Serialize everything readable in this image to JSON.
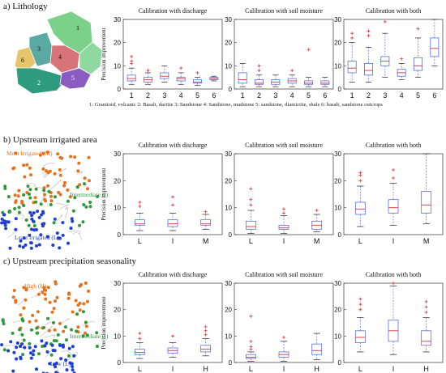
{
  "sections": [
    {
      "label": "a) Lithology"
    },
    {
      "label": "b) Upstream irrigated area"
    },
    {
      "label": "c) Upstream precipitation seasonality"
    }
  ],
  "lithology_caption": "1: Granitoid, volcanic   2: Basalt, dactite   3: Sandstone   4: Sandstone, mudstone   5: sandstone, diamictite, shale   6: basalt, sandstone outcrops",
  "maps": {
    "lithology_numbers": [
      "1",
      "2",
      "3",
      "4",
      "5",
      "6"
    ],
    "irrigated_labels": {
      "high": "Most Irrigated (M)",
      "mid": "Intermediate (I)",
      "low": "Least irrigated (L)"
    },
    "seasonality_labels": {
      "high": "High (H)",
      "mid": "Intermediate (I)",
      "low": "Low (L)"
    },
    "colors": {
      "high": "#e8701a",
      "mid": "#2e9a3a",
      "low": "#1f3fd0"
    }
  },
  "colors": {
    "box": "#5a6ee0",
    "median": "#e0303a",
    "outlier": "#e0303a",
    "axis": "#333333"
  },
  "chart_data": [
    {
      "id": "a1",
      "type": "box",
      "title": "Calibration with discharge",
      "ylabel": "Precision improvement",
      "ylim": [
        0,
        30
      ],
      "yticks": [
        0,
        10,
        20,
        30
      ],
      "categories": [
        "1",
        "2",
        "3",
        "4",
        "5",
        "6"
      ],
      "boxes": [
        {
          "wlo": 2,
          "q1": 3.5,
          "med": 4.5,
          "q3": 6,
          "whi": 9,
          "out": [
            11,
            12,
            14
          ]
        },
        {
          "wlo": 2,
          "q1": 3,
          "med": 4,
          "q3": 5,
          "whi": 7,
          "out": [
            8
          ]
        },
        {
          "wlo": 3,
          "q1": 4.5,
          "med": 5.5,
          "q3": 7,
          "whi": 10,
          "out": []
        },
        {
          "wlo": 2,
          "q1": 3.5,
          "med": 4.5,
          "q3": 5,
          "whi": 7,
          "out": [
            9
          ]
        },
        {
          "wlo": 1.5,
          "q1": 2.5,
          "med": 3,
          "q3": 4,
          "whi": 5,
          "out": [
            7
          ]
        },
        {
          "wlo": 3.5,
          "q1": 4,
          "med": 4.5,
          "q3": 5,
          "whi": 5.5,
          "out": []
        }
      ]
    },
    {
      "id": "a2",
      "type": "box",
      "title": "Calibration with soil moisture",
      "ylabel": "",
      "ylim": [
        0,
        30
      ],
      "yticks": [
        0,
        10,
        20,
        30
      ],
      "categories": [
        "1",
        "2",
        "3",
        "4",
        "5",
        "6"
      ],
      "boxes": [
        {
          "wlo": 1,
          "q1": 2.5,
          "med": 4,
          "q3": 7,
          "whi": 11,
          "out": []
        },
        {
          "wlo": 1,
          "q1": 2,
          "med": 2.5,
          "q3": 4,
          "whi": 6,
          "out": [
            8,
            10
          ]
        },
        {
          "wlo": 1,
          "q1": 2,
          "med": 3,
          "q3": 4,
          "whi": 6,
          "out": []
        },
        {
          "wlo": 1,
          "q1": 2.5,
          "med": 3.5,
          "q3": 4.5,
          "whi": 6,
          "out": [
            8
          ]
        },
        {
          "wlo": 1,
          "q1": 2,
          "med": 2.5,
          "q3": 3.5,
          "whi": 5,
          "out": [
            17
          ]
        },
        {
          "wlo": 1,
          "q1": 2,
          "med": 2.5,
          "q3": 3.5,
          "whi": 5,
          "out": []
        }
      ]
    },
    {
      "id": "a3",
      "type": "box",
      "title": "Calibration with both",
      "ylabel": "",
      "ylim": [
        0,
        30
      ],
      "yticks": [
        0,
        10,
        20,
        30
      ],
      "categories": [
        "1",
        "2",
        "3",
        "4",
        "5",
        "6"
      ],
      "boxes": [
        {
          "wlo": 3,
          "q1": 7,
          "med": 9,
          "q3": 12,
          "whi": 20,
          "out": [
            22,
            24
          ]
        },
        {
          "wlo": 3,
          "q1": 6,
          "med": 8,
          "q3": 11,
          "whi": 18,
          "out": [
            23,
            25
          ]
        },
        {
          "wlo": 5,
          "q1": 10,
          "med": 12,
          "q3": 14,
          "whi": 24,
          "out": [
            29
          ]
        },
        {
          "wlo": 4,
          "q1": 5.5,
          "med": 7,
          "q3": 8.5,
          "whi": 11,
          "out": [
            13
          ]
        },
        {
          "wlo": 5,
          "q1": 8,
          "med": 10,
          "q3": 13.5,
          "whi": 22,
          "out": [
            26
          ]
        },
        {
          "wlo": 10,
          "q1": 14,
          "med": 17.5,
          "q3": 22,
          "whi": 30,
          "out": []
        }
      ]
    },
    {
      "id": "b1",
      "type": "box",
      "title": "Calibration with discharge",
      "ylabel": "Precision improvement",
      "ylim": [
        0,
        30
      ],
      "yticks": [
        0,
        10,
        20,
        30
      ],
      "categories": [
        "L",
        "I",
        "M"
      ],
      "boxes": [
        {
          "wlo": 1.5,
          "q1": 3.5,
          "med": 4,
          "q3": 5.5,
          "whi": 8,
          "out": [
            10.5,
            12
          ]
        },
        {
          "wlo": 1.5,
          "q1": 3,
          "med": 4,
          "q3": 5.5,
          "whi": 8,
          "out": [
            11,
            14
          ]
        },
        {
          "wlo": 2,
          "q1": 3.5,
          "med": 4,
          "q3": 5.5,
          "whi": 7.5,
          "out": [
            8.5
          ]
        }
      ]
    },
    {
      "id": "b2",
      "type": "box",
      "title": "Calibration with soil moisture",
      "ylabel": "",
      "ylim": [
        0,
        30
      ],
      "yticks": [
        0,
        10,
        20,
        30
      ],
      "categories": [
        "L",
        "I",
        "M"
      ],
      "boxes": [
        {
          "wlo": 0.5,
          "q1": 2,
          "med": 3,
          "q3": 5,
          "whi": 9,
          "out": [
            11,
            13,
            17
          ]
        },
        {
          "wlo": 0.5,
          "q1": 2,
          "med": 2.5,
          "q3": 3.5,
          "whi": 7,
          "out": [
            8,
            9.5
          ]
        },
        {
          "wlo": 1,
          "q1": 2,
          "med": 3.5,
          "q3": 5,
          "whi": 7.5,
          "out": [
            9
          ]
        }
      ]
    },
    {
      "id": "b3",
      "type": "box",
      "title": "Calibration with both",
      "ylabel": "",
      "ylim": [
        0,
        30
      ],
      "yticks": [
        0,
        10,
        20,
        30
      ],
      "categories": [
        "L",
        "I",
        "M"
      ],
      "boxes": [
        {
          "wlo": 3,
          "q1": 7.5,
          "med": 9.5,
          "q3": 12,
          "whi": 18,
          "out": [
            20,
            22,
            23
          ]
        },
        {
          "wlo": 3.5,
          "q1": 8,
          "med": 10,
          "q3": 13,
          "whi": 19,
          "out": [
            21,
            24
          ]
        },
        {
          "wlo": 4,
          "q1": 8,
          "med": 11,
          "q3": 16,
          "whi": 30,
          "out": []
        }
      ]
    },
    {
      "id": "c1",
      "type": "box",
      "title": "Calibration with discharge",
      "ylabel": "Precision improvement",
      "ylim": [
        0,
        30
      ],
      "yticks": [
        0,
        10,
        20,
        30
      ],
      "categories": [
        "L",
        "I",
        "H"
      ],
      "boxes": [
        {
          "wlo": 1.5,
          "q1": 3,
          "med": 3.8,
          "q3": 5,
          "whi": 7.5,
          "out": [
            9,
            11
          ]
        },
        {
          "wlo": 2,
          "q1": 3.5,
          "med": 4.5,
          "q3": 5.5,
          "whi": 7.5,
          "out": [
            10
          ]
        },
        {
          "wlo": 2.5,
          "q1": 4,
          "med": 5,
          "q3": 6.5,
          "whi": 9,
          "out": [
            10.5,
            12,
            13.5
          ]
        }
      ]
    },
    {
      "id": "c2",
      "type": "box",
      "title": "Calibration with soil moisture",
      "ylabel": "",
      "ylim": [
        0,
        30
      ],
      "yticks": [
        0,
        10,
        20,
        30
      ],
      "categories": [
        "L",
        "I",
        "H"
      ],
      "boxes": [
        {
          "wlo": 0.5,
          "q1": 1.5,
          "med": 2,
          "q3": 3,
          "whi": 4,
          "out": [
            5,
            6,
            8,
            17.5
          ]
        },
        {
          "wlo": 0.5,
          "q1": 2,
          "med": 3,
          "q3": 4,
          "whi": 8,
          "out": [
            9.5
          ]
        },
        {
          "wlo": 1,
          "q1": 3,
          "med": 4.5,
          "q3": 7,
          "whi": 11,
          "out": []
        }
      ]
    },
    {
      "id": "c3",
      "type": "box",
      "title": "Calibration with both",
      "ylabel": "",
      "ylim": [
        0,
        30
      ],
      "yticks": [
        0,
        10,
        20,
        30
      ],
      "categories": [
        "L",
        "I",
        "H"
      ],
      "boxes": [
        {
          "wlo": 4,
          "q1": 7.5,
          "med": 9.5,
          "q3": 12,
          "whi": 17,
          "out": [
            20,
            22,
            24
          ]
        },
        {
          "wlo": 3,
          "q1": 8,
          "med": 12,
          "q3": 16,
          "whi": 29,
          "out": [
            30
          ]
        },
        {
          "wlo": 4,
          "q1": 6.5,
          "med": 8,
          "q3": 12,
          "whi": 17,
          "out": [
            19,
            21,
            23
          ]
        }
      ]
    }
  ]
}
